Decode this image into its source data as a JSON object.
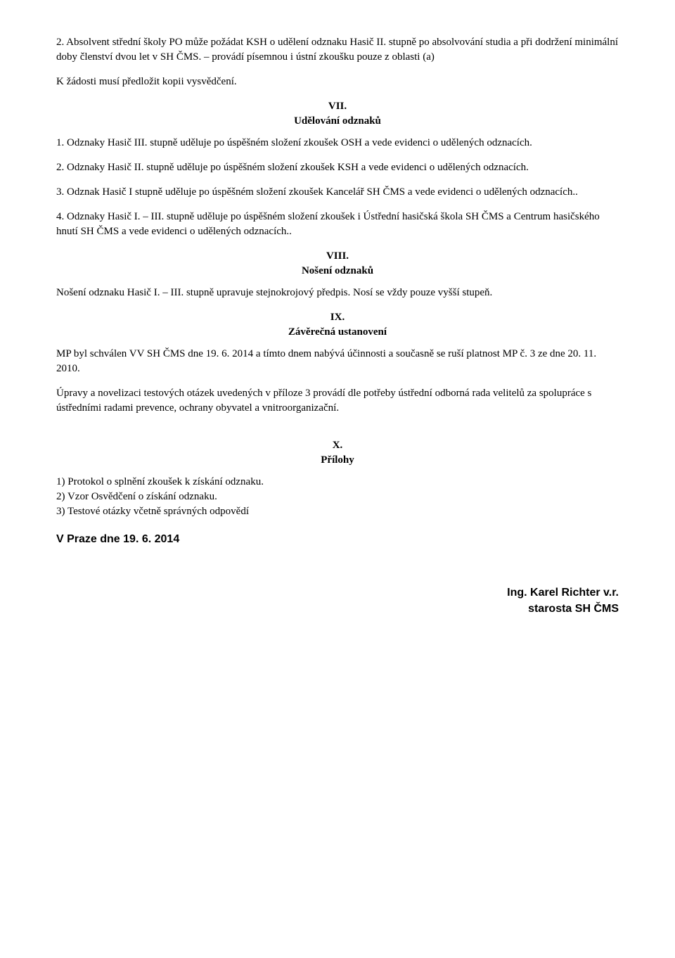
{
  "para1": "2. Absolvent střední školy PO může požádat KSH o udělení odznaku Hasič II. stupně po absolvování studia a při dodržení minimální doby členství dvou let v SH ČMS. – provádí písemnou i ústní zkoušku pouze z oblasti (a)",
  "para2": "K žádosti musí předložit kopii vysvědčení.",
  "sec7_num": "VII.",
  "sec7_title": "Udělování odznaků",
  "sec7_p1": "1. Odznaky  Hasič III. stupně uděluje po úspěšném složení zkoušek OSH  a vede evidenci o udělených odznacích.",
  "sec7_p2": "2. Odznaky  Hasič II. stupně uděluje po úspěšném složení zkoušek KSH a vede evidenci o udělených odznacích.",
  "sec7_p3": "3. Odznak  Hasič I stupně uděluje po úspěšném složení zkoušek Kancelář SH ČMS a vede evidenci o udělených odznacích..",
  "sec7_p4": "4. Odznaky  Hasič I. – III. stupně uděluje po úspěšném složení zkoušek i Ústřední  hasičská škola SH ČMS a Centrum hasičského hnutí SH ČMS a vede evidenci o udělených odznacích..",
  "sec8_num": "VIII.",
  "sec8_title": "Nošení odznaků",
  "sec8_p1": "Nošení odznaku Hasič I. – III. stupně upravuje stejnokrojový předpis. Nosí se vždy pouze vyšší stupeň.",
  "sec9_num": "IX.",
  "sec9_title": "Závěrečná ustanovení",
  "sec9_p1": "MP byl schválen VV SH ČMS dne 19. 6. 2014 a tímto dnem nabývá účinnosti a současně se ruší platnost MP č. 3 ze dne 20. 11. 2010.",
  "sec9_p2": "Úpravy a novelizaci testových otázek uvedených v příloze 3 provádí dle potřeby ústřední odborná rada velitelů za spolupráce s ústředními radami prevence, ochrany obyvatel a vnitroorganizační.",
  "sec10_num": "X.",
  "sec10_title": "Přílohy",
  "sec10_item1": "1) Protokol o splnění zkoušek k získání odznaku.",
  "sec10_item2": "2) Vzor Osvědčení o získání odznaku.",
  "sec10_item3": "3) Testové otázky včetně správných odpovědí",
  "date_location": "V Praze dne 19. 6.  2014",
  "sig_name": "Ing. Karel Richter v.r.",
  "sig_title": "starosta SH ČMS"
}
